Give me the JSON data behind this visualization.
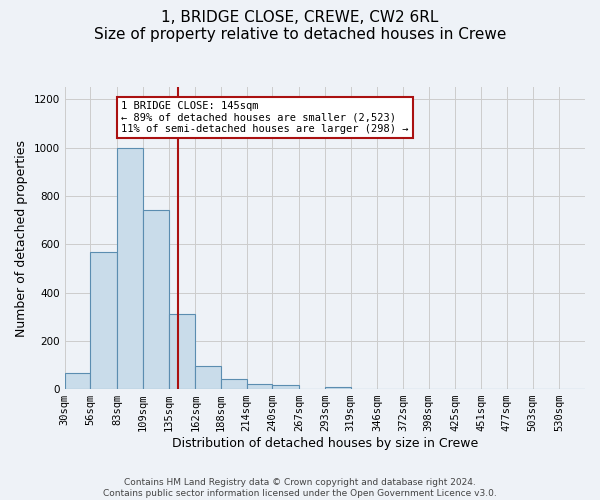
{
  "title": "1, BRIDGE CLOSE, CREWE, CW2 6RL",
  "subtitle": "Size of property relative to detached houses in Crewe",
  "xlabel": "Distribution of detached houses by size in Crewe",
  "ylabel": "Number of detached properties",
  "bin_edges": [
    30,
    56,
    83,
    109,
    135,
    162,
    188,
    214,
    240,
    267,
    293,
    319,
    346,
    372,
    398,
    425,
    451,
    477,
    503,
    530,
    556
  ],
  "bar_heights": [
    65,
    570,
    1000,
    740,
    310,
    95,
    40,
    22,
    15,
    0,
    10,
    0,
    0,
    0,
    0,
    0,
    0,
    0,
    0,
    0
  ],
  "bar_color": "#c9dcea",
  "bar_edge_color": "#5b8db0",
  "property_size": 145,
  "vline_color": "#aa1111",
  "annotation_line1": "1 BRIDGE CLOSE: 145sqm",
  "annotation_line2": "← 89% of detached houses are smaller (2,523)",
  "annotation_line3": "11% of semi-detached houses are larger (298) →",
  "annotation_box_facecolor": "#ffffff",
  "annotation_box_edgecolor": "#aa1111",
  "ylim": [
    0,
    1250
  ],
  "yticks": [
    0,
    200,
    400,
    600,
    800,
    1000,
    1200
  ],
  "footer_line1": "Contains HM Land Registry data © Crown copyright and database right 2024.",
  "footer_line2": "Contains public sector information licensed under the Open Government Licence v3.0.",
  "background_color": "#eef2f7",
  "grid_color": "#cccccc",
  "title_fontsize": 11,
  "axis_label_fontsize": 9,
  "tick_label_fontsize": 7.5,
  "annotation_fontsize": 7.5,
  "footer_fontsize": 6.5
}
